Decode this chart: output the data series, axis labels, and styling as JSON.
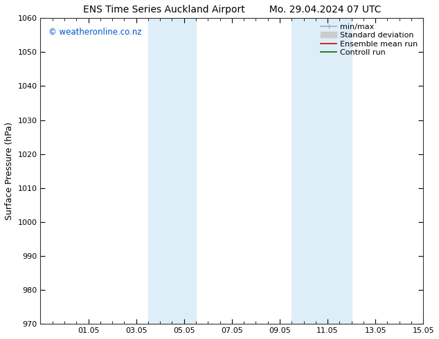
{
  "title_left": "ENS Time Series Auckland Airport",
  "title_right": "Mo. 29.04.2024 07 UTC",
  "ylabel": "Surface Pressure (hPa)",
  "ylim": [
    970,
    1060
  ],
  "yticks": [
    970,
    980,
    990,
    1000,
    1010,
    1020,
    1030,
    1040,
    1050,
    1060
  ],
  "xlim": [
    0,
    16
  ],
  "xtick_labels": [
    "01.05",
    "03.05",
    "05.05",
    "07.05",
    "09.05",
    "11.05",
    "13.05",
    "15.05"
  ],
  "xtick_positions": [
    2,
    4,
    6,
    8,
    10,
    12,
    14,
    16
  ],
  "shaded_bands": [
    {
      "x_start": 4.5,
      "x_end": 6.5
    },
    {
      "x_start": 10.5,
      "x_end": 13.0
    }
  ],
  "shaded_color": "#ddeef8",
  "watermark_text": "© weatheronline.co.nz",
  "watermark_color": "#0055cc",
  "legend_entries": [
    {
      "label": "min/max",
      "color": "#aaaaaa",
      "lw": 1.2
    },
    {
      "label": "Standard deviation",
      "color": "#cccccc",
      "lw": 6
    },
    {
      "label": "Ensemble mean run",
      "color": "#cc0000",
      "lw": 1.2
    },
    {
      "label": "Controll run",
      "color": "#006600",
      "lw": 1.2
    }
  ],
  "bg_color": "#ffffff",
  "title_fontsize": 10,
  "tick_fontsize": 8,
  "ylabel_fontsize": 9,
  "legend_fontsize": 8
}
